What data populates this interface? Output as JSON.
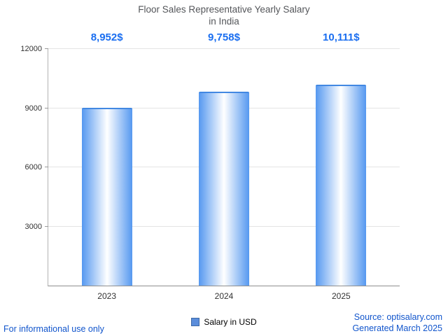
{
  "chart_data": {
    "type": "bar",
    "title": "Floor Sales Representative Yearly Salary in India",
    "title_line1": "Floor Sales Representative Yearly Salary",
    "title_line2": "in India",
    "categories": [
      "2023",
      "2024",
      "2025"
    ],
    "values": [
      8952,
      9758,
      10111
    ],
    "value_labels": [
      "8,952$",
      "9,758$",
      "10,111$"
    ],
    "series_name": "Salary in USD",
    "legend": "Salary in USD",
    "legend_position": "bottom",
    "xlabel": "",
    "ylabel": "",
    "ylim": [
      0,
      12000
    ],
    "yticks": [
      3000,
      6000,
      9000,
      12000
    ],
    "grid": true
  },
  "footer": {
    "disclaimer": "For informational use only",
    "source": "Source: optisalary.com",
    "generated": "Generated March 2025"
  },
  "colors": {
    "accent": "#1a6ef0",
    "link": "#1155cc",
    "bar_edge": "#5598f0",
    "bar_center": "#ffffff",
    "bar_top": "#4288e2",
    "legend_swatch": "#5b8ddb",
    "legend_swatch_border": "#3f6aa6"
  }
}
